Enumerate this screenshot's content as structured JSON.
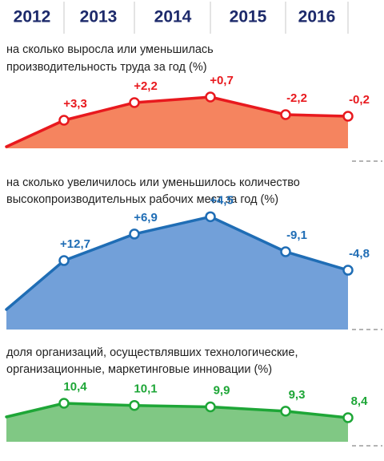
{
  "years": [
    "2012",
    "2013",
    "2014",
    "2015",
    "2016"
  ],
  "chart_data": [
    {
      "type": "area",
      "title": [
        "на сколько выросла или уменьшилась",
        "производительность труда за год (%)"
      ],
      "values": [
        3.3,
        2.2,
        0.7,
        -2.2,
        -0.2
      ],
      "value_labels": [
        "+3,3",
        "+2,2",
        "+0,7",
        "-2,2",
        "-0,2"
      ],
      "color": "#e8191e",
      "fill": "#f5845f"
    },
    {
      "type": "area",
      "title": [
        "на сколько увеличилось или уменьшилось количество",
        "высокопроизводительных рабочих мест за год (%)"
      ],
      "values": [
        12.7,
        6.9,
        4.5,
        -9.1,
        -4.8
      ],
      "value_labels": [
        "+12,7",
        "+6,9",
        "+4,5",
        "-9,1",
        "-4,8"
      ],
      "color": "#1f6db5",
      "fill": "#72a0d9"
    },
    {
      "type": "area",
      "title": [
        "доля организаций, осуществлявших технологические,",
        "организационные, маркетинговые инновации (%)"
      ],
      "values": [
        10.4,
        10.1,
        9.9,
        9.3,
        8.4
      ],
      "value_labels": [
        "10,4",
        "10,1",
        "9,9",
        "9,3",
        "8,4"
      ],
      "color": "#1ea637",
      "fill": "#80c884"
    }
  ]
}
